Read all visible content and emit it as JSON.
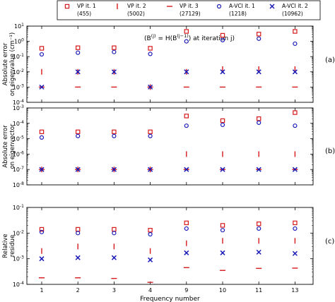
{
  "legend": [
    {
      "key": "vp1",
      "label": "VP it. 1",
      "count": "(455)",
      "marker": "square-open",
      "color": "#d7191c"
    },
    {
      "key": "vp2",
      "label": "VP it. 2",
      "count": "(5002)",
      "marker": "vline",
      "color": "#d7191c"
    },
    {
      "key": "vp3",
      "label": "VP it. 3",
      "count": "(27129)",
      "marker": "hline",
      "color": "#d7191c"
    },
    {
      "key": "avci1",
      "label": "A-VCI it. 1",
      "count": "(1218)",
      "marker": "circle-open",
      "color": "#1a1ab8"
    },
    {
      "key": "avci2",
      "label": "A-VCI it. 2",
      "count": "(10962)",
      "marker": "x",
      "color": "#1a1ab8"
    }
  ],
  "title": "(B(j) = H(B(j−1)) at iteration j)",
  "title_parts": {
    "open": "(",
    "b": "B",
    "sup_j": "(j)",
    "eq": " = H(B",
    "sup_jm1": "(j−1)",
    "close": ") at iteration j)"
  },
  "chart_data": [
    {
      "type": "scatter",
      "panel_tag": "(a)",
      "ylabel": [
        "Absolute error",
        "on eigenvalue (cm⁻¹)"
      ],
      "yscale": "log",
      "ylim": [
        0.0001,
        10
      ],
      "yticks": [
        {
          "exp": "-4"
        },
        {
          "exp": "-3"
        },
        {
          "exp": "-2"
        },
        {
          "exp": "-1"
        },
        {
          "exp": "0"
        },
        {
          "exp": "1"
        }
      ],
      "categories": [
        "1",
        "2",
        "3",
        "4",
        "9",
        "10",
        "11",
        "13"
      ],
      "series": [
        {
          "name": "VP it. 1",
          "values": [
            0.35,
            0.38,
            0.38,
            0.35,
            4.5,
            2.5,
            3.0,
            4.5
          ]
        },
        {
          "name": "VP it. 2",
          "values": [
            0.01,
            0.01,
            0.01,
            0.001,
            0.01,
            0.015,
            0.015,
            0.015
          ]
        },
        {
          "name": "VP it. 3",
          "values": [
            0.001,
            0.001,
            0.001,
            0.001,
            0.001,
            0.001,
            0.001,
            0.001
          ]
        },
        {
          "name": "A-VCI it. 1",
          "values": [
            0.14,
            0.18,
            0.2,
            0.15,
            1.0,
            1.2,
            1.5,
            0.7
          ]
        },
        {
          "name": "A-VCI it. 2",
          "values": [
            0.001,
            0.01,
            0.01,
            0.001,
            0.01,
            0.01,
            0.01,
            0.01
          ]
        }
      ]
    },
    {
      "type": "scatter",
      "panel_tag": "(b)",
      "ylabel": [
        "Absolute error",
        "on eigenvector"
      ],
      "yscale": "log",
      "ylim": [
        1e-08,
        0.001
      ],
      "yticks": [
        {
          "exp": "-8"
        },
        {
          "exp": "-7"
        },
        {
          "exp": "-6"
        },
        {
          "exp": "-5"
        },
        {
          "exp": "-4"
        },
        {
          "exp": "-3"
        }
      ],
      "categories": [
        "1",
        "2",
        "3",
        "4",
        "9",
        "10",
        "11",
        "13"
      ],
      "series": [
        {
          "name": "VP it. 1",
          "values": [
            2.8e-05,
            2.8e-05,
            2.8e-05,
            2.8e-05,
            0.0003,
            0.00015,
            0.0002,
            0.0005
          ]
        },
        {
          "name": "VP it. 2",
          "values": [
            1e-07,
            1e-07,
            1e-07,
            1e-07,
            1e-06,
            1e-06,
            1e-06,
            1e-06
          ]
        },
        {
          "name": "VP it. 3",
          "values": [
            1e-07,
            1e-07,
            1e-07,
            1e-07,
            1e-07,
            1e-07,
            1e-07,
            1e-07
          ]
        },
        {
          "name": "A-VCI it. 1",
          "values": [
            1.2e-05,
            1.5e-05,
            1.5e-05,
            1.5e-05,
            7e-05,
            8e-05,
            0.00011,
            7e-05
          ]
        },
        {
          "name": "A-VCI it. 2",
          "values": [
            1e-07,
            1e-07,
            1e-07,
            1e-07,
            1e-07,
            1e-07,
            1e-07,
            1e-07
          ]
        }
      ]
    },
    {
      "type": "scatter",
      "panel_tag": "(c)",
      "ylabel": [
        "Relative",
        "residue"
      ],
      "yscale": "log",
      "ylim": [
        0.0001,
        0.1
      ],
      "yticks": [
        {
          "exp": "-4"
        },
        {
          "exp": "-3"
        },
        {
          "exp": "-2"
        },
        {
          "exp": "-1"
        }
      ],
      "categories": [
        "1",
        "2",
        "3",
        "4",
        "9",
        "10",
        "11",
        "13"
      ],
      "xlabel": "Frequency number",
      "series": [
        {
          "name": "VP it. 1",
          "values": [
            0.014,
            0.014,
            0.014,
            0.013,
            0.025,
            0.02,
            0.023,
            0.025
          ]
        },
        {
          "name": "VP it. 2",
          "values": [
            0.002,
            0.003,
            0.003,
            0.002,
            0.004,
            0.005,
            0.005,
            0.005
          ]
        },
        {
          "name": "VP it. 3",
          "values": [
            0.00018,
            0.00018,
            0.00017,
            0.00012,
            0.00045,
            0.00035,
            0.00042,
            0.00043
          ]
        },
        {
          "name": "A-VCI it. 1",
          "values": [
            0.011,
            0.01,
            0.01,
            0.009,
            0.015,
            0.013,
            0.015,
            0.015
          ]
        },
        {
          "name": "A-VCI it. 2",
          "values": [
            0.001,
            0.0011,
            0.0011,
            0.0009,
            0.0017,
            0.0017,
            0.0018,
            0.0016
          ]
        }
      ]
    }
  ]
}
